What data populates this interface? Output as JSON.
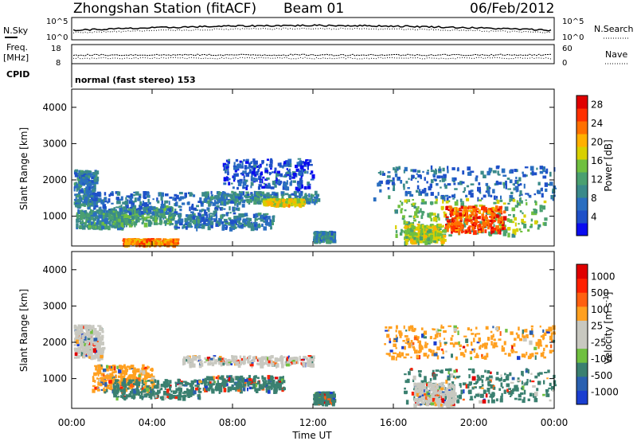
{
  "header": {
    "station": "Zhongshan Station (fitACF)",
    "beam": "Beam 01",
    "date": "06/Feb/2012",
    "cpid": "normal (fast stereo) 153"
  },
  "strips": {
    "nsky_label": "N.Sky",
    "nsky_ticks": [
      "10^5",
      "10^0"
    ],
    "nsearch_label": "N.Search",
    "nsearch_ticks": [
      "10^5",
      "10^0"
    ],
    "freq_label": "Freq.",
    "freq_unit": "[MHz]",
    "freq_ticks": [
      "18",
      "8"
    ],
    "nave_label": "Nave",
    "nave_ticks": [
      "60",
      "0"
    ],
    "cpid_label": "CPID"
  },
  "chart_data": [
    {
      "type": "heatmap",
      "panel": "power",
      "xlabel": "Time UT",
      "ylabel": "Slant Range [km]",
      "xlim": [
        0,
        24
      ],
      "ylim": [
        180,
        4500
      ],
      "x_ticks": [
        "00:00",
        "04:00",
        "08:00",
        "12:00",
        "16:00",
        "20:00",
        "00:00"
      ],
      "y_ticks": [
        "1000",
        "2000",
        "3000",
        "4000"
      ],
      "colorbar": {
        "label": "Power [dB]",
        "range": [
          0,
          30
        ],
        "ticks": [
          "4",
          "8",
          "12",
          "16",
          "20",
          "24",
          "28"
        ],
        "colors": [
          "#0a0cf0",
          "#1e50c8",
          "#2a6ec0",
          "#3a8a8a",
          "#4aa070",
          "#70c040",
          "#d8d000",
          "#ffb000",
          "#ff7000",
          "#ff3000",
          "#e00000"
        ]
      },
      "regions": [
        {
          "t0": 0.1,
          "t1": 1.2,
          "r0": 1300,
          "r1": 2300,
          "level": 8
        },
        {
          "t0": 0.2,
          "t1": 2.5,
          "r0": 700,
          "r1": 1200,
          "level": 10
        },
        {
          "t0": 2.5,
          "t1": 5.2,
          "r0": 250,
          "r1": 400,
          "level": 22
        },
        {
          "t0": 2.0,
          "t1": 5.0,
          "r0": 800,
          "r1": 1300,
          "level": 12
        },
        {
          "t0": 1.0,
          "t1": 8.5,
          "r0": 1100,
          "r1": 1700,
          "level": 7
        },
        {
          "t0": 5.0,
          "t1": 10.0,
          "r0": 700,
          "r1": 1100,
          "level": 8
        },
        {
          "t0": 6.5,
          "t1": 12.2,
          "r0": 1400,
          "r1": 1700,
          "level": 9
        },
        {
          "t0": 9.5,
          "t1": 11.5,
          "r0": 1350,
          "r1": 1500,
          "level": 18
        },
        {
          "t0": 7.5,
          "t1": 12.0,
          "r0": 1800,
          "r1": 2600,
          "level": 5
        },
        {
          "t0": 12.0,
          "t1": 13.0,
          "r0": 350,
          "r1": 600,
          "level": 9
        },
        {
          "t0": 15.0,
          "t1": 24.0,
          "r0": 1500,
          "r1": 2400,
          "level": 7
        },
        {
          "t0": 16.0,
          "t1": 23.5,
          "r0": 500,
          "r1": 1500,
          "level": 14
        },
        {
          "t0": 18.5,
          "t1": 21.5,
          "r0": 600,
          "r1": 1300,
          "level": 25
        },
        {
          "t0": 16.5,
          "t1": 18.5,
          "r0": 300,
          "r1": 800,
          "level": 16
        }
      ]
    },
    {
      "type": "heatmap",
      "panel": "velocity",
      "xlabel": "Time UT",
      "ylabel": "Slant Range [km]",
      "xlim": [
        0,
        24
      ],
      "ylim": [
        180,
        4500
      ],
      "x_ticks": [
        "00:00",
        "04:00",
        "08:00",
        "12:00",
        "16:00",
        "20:00",
        "00:00"
      ],
      "y_ticks": [
        "1000",
        "2000",
        "3000",
        "4000"
      ],
      "colorbar": {
        "label": "Velocity [m s-1]",
        "ticks": [
          "1000",
          "500",
          "100",
          "25",
          "-25",
          "-100",
          "-500",
          "-1000"
        ],
        "colors": [
          "#1a3ed0",
          "#2a60b0",
          "#3a8070",
          "#70c040",
          "#c8c8c0",
          "#c8c8c0",
          "#ffa020",
          "#ff6010",
          "#ff2000",
          "#e00000"
        ]
      },
      "regions": [
        {
          "t0": 0.1,
          "t1": 1.5,
          "r0": 1600,
          "r1": 2500,
          "level": "-25"
        },
        {
          "t0": 1.0,
          "t1": 4.0,
          "r0": 700,
          "r1": 1400,
          "level": "-100"
        },
        {
          "t0": 2.0,
          "t1": 6.5,
          "r0": 500,
          "r1": 1000,
          "level": "100"
        },
        {
          "t0": 5.5,
          "t1": 12.0,
          "r0": 1400,
          "r1": 1650,
          "level": "-25"
        },
        {
          "t0": 6.5,
          "t1": 10.5,
          "r0": 700,
          "r1": 1100,
          "level": "100"
        },
        {
          "t0": 12.0,
          "t1": 13.0,
          "r0": 350,
          "r1": 650,
          "level": "100"
        },
        {
          "t0": 15.5,
          "t1": 24.0,
          "r0": 1600,
          "r1": 2500,
          "level": "-100"
        },
        {
          "t0": 16.5,
          "t1": 24.0,
          "r0": 400,
          "r1": 1300,
          "level": "100"
        },
        {
          "t0": 17.0,
          "t1": 19.0,
          "r0": 300,
          "r1": 900,
          "level": "-25"
        }
      ]
    }
  ]
}
